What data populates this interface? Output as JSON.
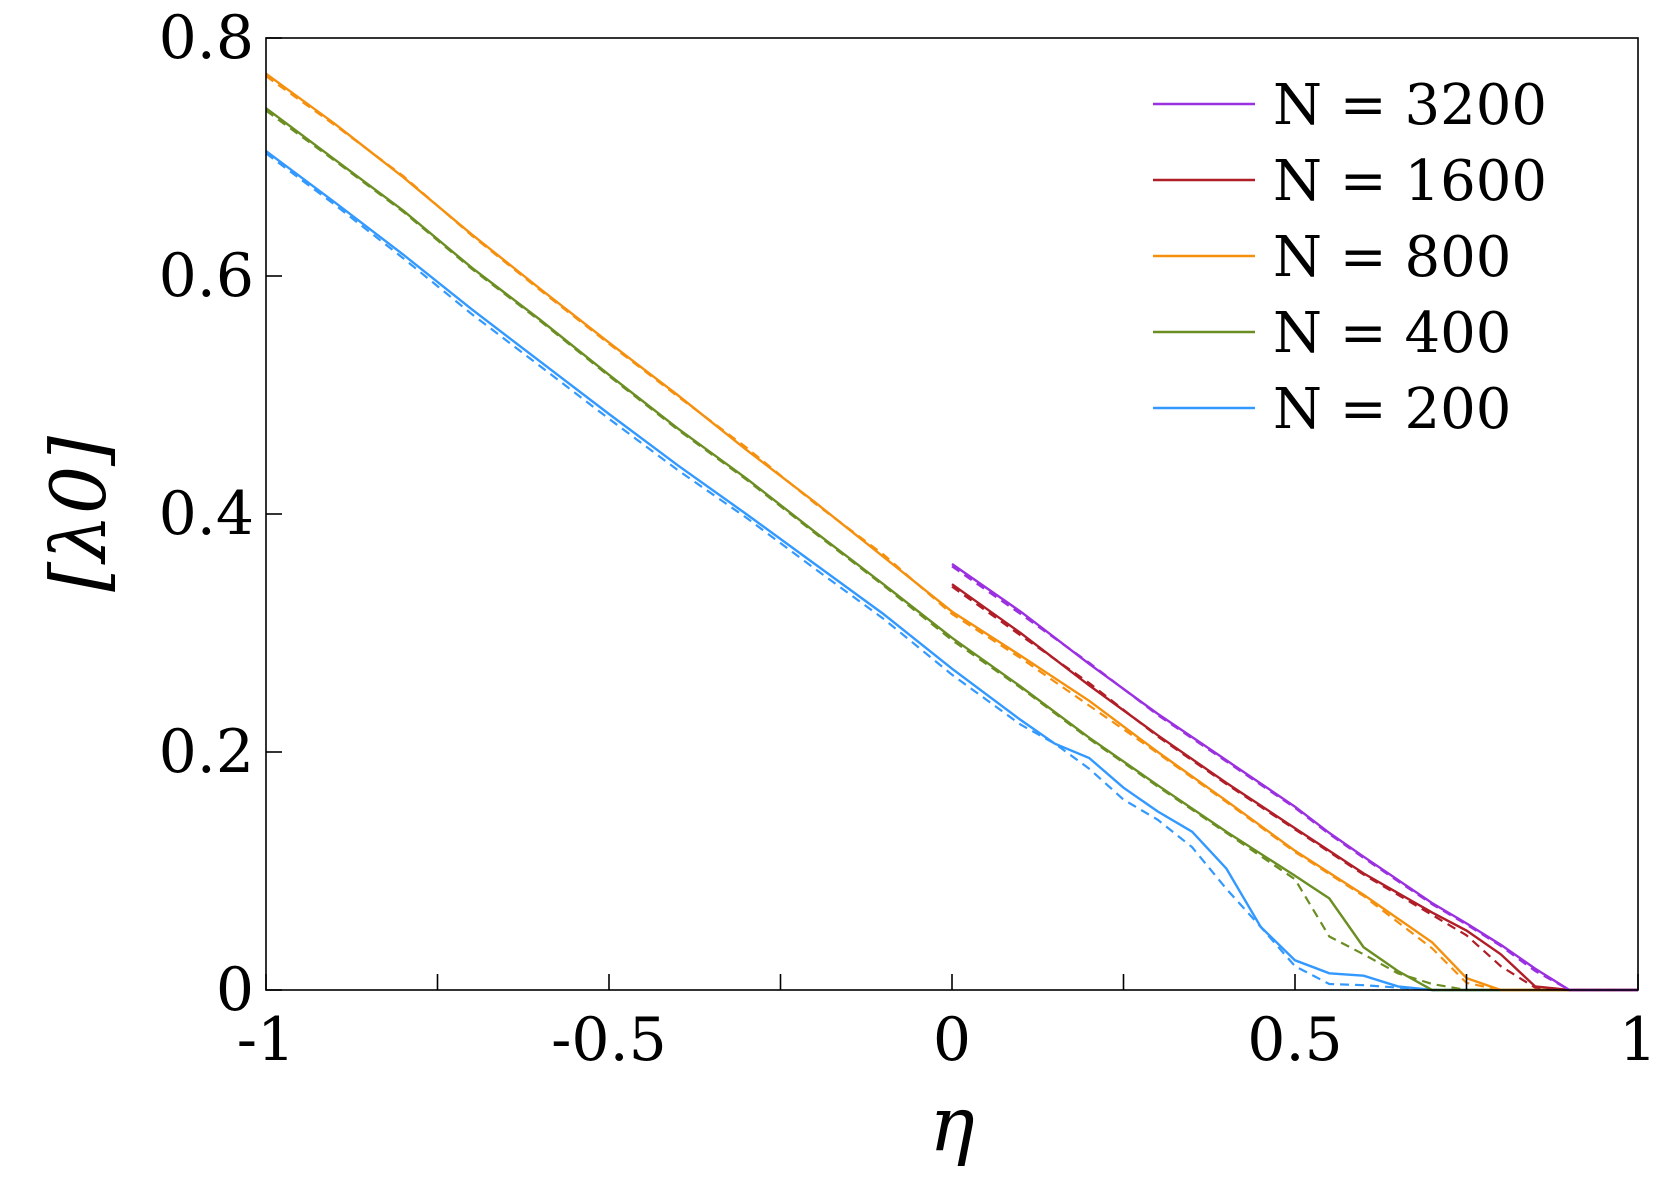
{
  "chart_data": {
    "type": "line",
    "xlabel": "η",
    "ylabel": "[λ0]",
    "xlim": [
      -1,
      1
    ],
    "ylim": [
      0,
      0.8
    ],
    "xticks": [
      -1,
      -0.75,
      -0.5,
      -0.25,
      0,
      0.25,
      0.5,
      0.75,
      1
    ],
    "xtick_labels": [
      "-1",
      "",
      "-0.5",
      "",
      "0",
      "",
      "0.5",
      "",
      "1"
    ],
    "yticks": [
      0,
      0.2,
      0.4,
      0.6,
      0.8
    ],
    "ytick_labels": [
      "0",
      "0.2",
      "0.4",
      "0.6",
      "0.8"
    ],
    "grid": false,
    "legend_position": "top-right",
    "line_styles": {
      "solid": "solid",
      "dashed": "dashed"
    },
    "series": [
      {
        "name": "N = 3200",
        "color": "#9b30e0",
        "solid": [
          [
            0,
            0.358
          ],
          [
            0.1,
            0.318
          ],
          [
            0.2,
            0.274
          ],
          [
            0.3,
            0.232
          ],
          [
            0.4,
            0.193
          ],
          [
            0.5,
            0.154
          ],
          [
            0.55,
            0.132
          ],
          [
            0.6,
            0.112
          ],
          [
            0.7,
            0.073
          ],
          [
            0.75,
            0.056
          ],
          [
            0.8,
            0.038
          ],
          [
            0.85,
            0.018
          ],
          [
            0.9,
            0.0
          ],
          [
            1.0,
            0.0
          ]
        ],
        "dashed": [
          [
            0,
            0.356
          ],
          [
            0.1,
            0.316
          ],
          [
            0.2,
            0.275
          ],
          [
            0.3,
            0.231
          ],
          [
            0.4,
            0.192
          ],
          [
            0.5,
            0.153
          ],
          [
            0.55,
            0.131
          ],
          [
            0.6,
            0.111
          ],
          [
            0.7,
            0.072
          ],
          [
            0.75,
            0.055
          ],
          [
            0.8,
            0.037
          ],
          [
            0.85,
            0.016
          ],
          [
            0.9,
            0.0
          ],
          [
            1.0,
            0.0
          ]
        ]
      },
      {
        "name": "N = 1600",
        "color": "#b01e28",
        "solid": [
          [
            0,
            0.341
          ],
          [
            0.1,
            0.3
          ],
          [
            0.2,
            0.256
          ],
          [
            0.3,
            0.214
          ],
          [
            0.4,
            0.174
          ],
          [
            0.5,
            0.136
          ],
          [
            0.6,
            0.098
          ],
          [
            0.7,
            0.065
          ],
          [
            0.75,
            0.05
          ],
          [
            0.8,
            0.03
          ],
          [
            0.85,
            0.003
          ],
          [
            0.9,
            0.0
          ],
          [
            1.0,
            0.0
          ]
        ],
        "dashed": [
          [
            0,
            0.339
          ],
          [
            0.1,
            0.298
          ],
          [
            0.2,
            0.258
          ],
          [
            0.3,
            0.213
          ],
          [
            0.4,
            0.173
          ],
          [
            0.5,
            0.135
          ],
          [
            0.6,
            0.097
          ],
          [
            0.7,
            0.063
          ],
          [
            0.75,
            0.046
          ],
          [
            0.8,
            0.02
          ],
          [
            0.85,
            0.002
          ],
          [
            0.9,
            0.0
          ],
          [
            1.0,
            0.0
          ]
        ]
      },
      {
        "name": "N = 800",
        "color": "#f5900f",
        "solid": [
          [
            -1,
            0.77
          ],
          [
            -0.9,
            0.728
          ],
          [
            -0.8,
            0.683
          ],
          [
            -0.7,
            0.635
          ],
          [
            -0.6,
            0.589
          ],
          [
            -0.5,
            0.544
          ],
          [
            -0.4,
            0.5
          ],
          [
            -0.3,
            0.454
          ],
          [
            -0.2,
            0.41
          ],
          [
            -0.1,
            0.364
          ],
          [
            0,
            0.318
          ],
          [
            0.1,
            0.281
          ],
          [
            0.2,
            0.243
          ],
          [
            0.3,
            0.2
          ],
          [
            0.4,
            0.159
          ],
          [
            0.5,
            0.117
          ],
          [
            0.6,
            0.08
          ],
          [
            0.7,
            0.04
          ],
          [
            0.75,
            0.01
          ],
          [
            0.8,
            0.0
          ],
          [
            0.85,
            0.0
          ],
          [
            1.0,
            0.0
          ]
        ],
        "dashed": [
          [
            -1,
            0.768
          ],
          [
            -0.9,
            0.727
          ],
          [
            -0.8,
            0.684
          ],
          [
            -0.7,
            0.634
          ],
          [
            -0.6,
            0.588
          ],
          [
            -0.5,
            0.543
          ],
          [
            -0.4,
            0.499
          ],
          [
            -0.3,
            0.456
          ],
          [
            -0.2,
            0.409
          ],
          [
            -0.1,
            0.366
          ],
          [
            0,
            0.316
          ],
          [
            0.1,
            0.279
          ],
          [
            0.2,
            0.239
          ],
          [
            0.3,
            0.199
          ],
          [
            0.4,
            0.158
          ],
          [
            0.5,
            0.116
          ],
          [
            0.6,
            0.079
          ],
          [
            0.7,
            0.035
          ],
          [
            0.75,
            0.006
          ],
          [
            0.8,
            0.0
          ],
          [
            0.85,
            0.0
          ],
          [
            1.0,
            0.0
          ]
        ]
      },
      {
        "name": "N = 400",
        "color": "#6b8e23",
        "solid": [
          [
            -1,
            0.741
          ],
          [
            -0.9,
            0.698
          ],
          [
            -0.8,
            0.655
          ],
          [
            -0.7,
            0.607
          ],
          [
            -0.6,
            0.563
          ],
          [
            -0.5,
            0.517
          ],
          [
            -0.4,
            0.472
          ],
          [
            -0.3,
            0.43
          ],
          [
            -0.2,
            0.385
          ],
          [
            -0.1,
            0.341
          ],
          [
            0,
            0.296
          ],
          [
            0.1,
            0.255
          ],
          [
            0.2,
            0.212
          ],
          [
            0.3,
            0.172
          ],
          [
            0.4,
            0.133
          ],
          [
            0.5,
            0.096
          ],
          [
            0.55,
            0.077
          ],
          [
            0.6,
            0.036
          ],
          [
            0.65,
            0.016
          ],
          [
            0.7,
            0.0
          ],
          [
            0.75,
            0.0
          ],
          [
            1.0,
            0.0
          ]
        ],
        "dashed": [
          [
            -1,
            0.739
          ],
          [
            -0.9,
            0.697
          ],
          [
            -0.8,
            0.654
          ],
          [
            -0.7,
            0.606
          ],
          [
            -0.6,
            0.562
          ],
          [
            -0.5,
            0.516
          ],
          [
            -0.4,
            0.471
          ],
          [
            -0.3,
            0.429
          ],
          [
            -0.2,
            0.384
          ],
          [
            -0.1,
            0.34
          ],
          [
            0,
            0.294
          ],
          [
            0.1,
            0.254
          ],
          [
            0.2,
            0.211
          ],
          [
            0.3,
            0.171
          ],
          [
            0.4,
            0.132
          ],
          [
            0.5,
            0.093
          ],
          [
            0.55,
            0.045
          ],
          [
            0.6,
            0.03
          ],
          [
            0.65,
            0.014
          ],
          [
            0.7,
            0.005
          ],
          [
            0.75,
            0.0
          ],
          [
            1.0,
            0.0
          ]
        ]
      },
      {
        "name": "N = 200",
        "color": "#3399ff",
        "solid": [
          [
            -1,
            0.705
          ],
          [
            -0.9,
            0.662
          ],
          [
            -0.8,
            0.618
          ],
          [
            -0.7,
            0.572
          ],
          [
            -0.6,
            0.528
          ],
          [
            -0.5,
            0.484
          ],
          [
            -0.4,
            0.441
          ],
          [
            -0.3,
            0.4
          ],
          [
            -0.2,
            0.358
          ],
          [
            -0.1,
            0.316
          ],
          [
            0,
            0.27
          ],
          [
            0.1,
            0.227
          ],
          [
            0.15,
            0.207
          ],
          [
            0.2,
            0.195
          ],
          [
            0.25,
            0.17
          ],
          [
            0.3,
            0.15
          ],
          [
            0.35,
            0.133
          ],
          [
            0.4,
            0.102
          ],
          [
            0.45,
            0.053
          ],
          [
            0.5,
            0.025
          ],
          [
            0.55,
            0.014
          ],
          [
            0.6,
            0.012
          ],
          [
            0.65,
            0.003
          ],
          [
            0.7,
            0.0
          ],
          [
            1.0,
            0.0
          ]
        ],
        "dashed": [
          [
            -1,
            0.703
          ],
          [
            -0.9,
            0.66
          ],
          [
            -0.8,
            0.615
          ],
          [
            -0.7,
            0.568
          ],
          [
            -0.6,
            0.524
          ],
          [
            -0.5,
            0.48
          ],
          [
            -0.4,
            0.437
          ],
          [
            -0.3,
            0.397
          ],
          [
            -0.2,
            0.354
          ],
          [
            -0.1,
            0.312
          ],
          [
            0,
            0.265
          ],
          [
            0.1,
            0.223
          ],
          [
            0.15,
            0.207
          ],
          [
            0.2,
            0.186
          ],
          [
            0.25,
            0.16
          ],
          [
            0.3,
            0.143
          ],
          [
            0.35,
            0.12
          ],
          [
            0.4,
            0.085
          ],
          [
            0.45,
            0.053
          ],
          [
            0.5,
            0.02
          ],
          [
            0.55,
            0.005
          ],
          [
            0.6,
            0.004
          ],
          [
            0.7,
            0.0
          ],
          [
            1.0,
            0.0
          ]
        ]
      }
    ]
  }
}
